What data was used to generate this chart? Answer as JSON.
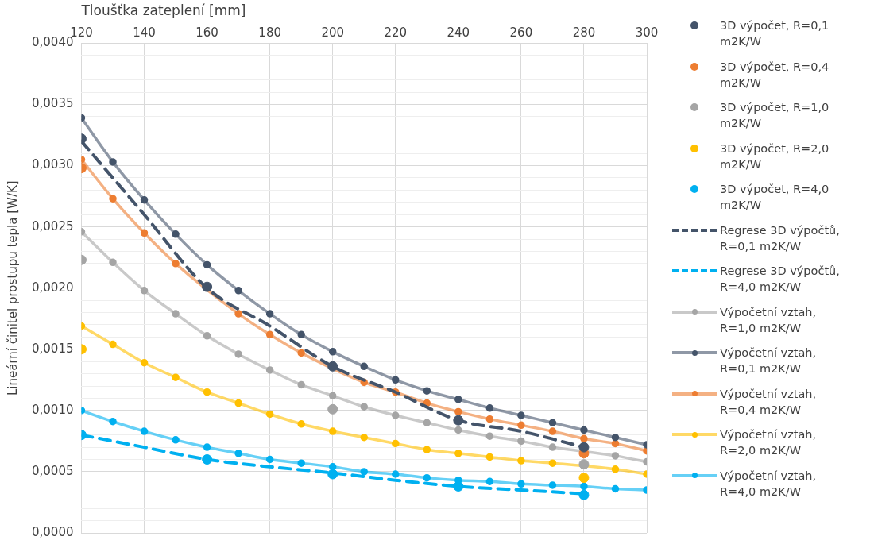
{
  "chart_data": {
    "type": "line",
    "xlabel": "Tloušťka zateplení [mm]",
    "ylabel": "Lineární činitel prostupu tepla [W/K]",
    "xlim": [
      120,
      300
    ],
    "xticks": [
      120,
      140,
      160,
      180,
      200,
      220,
      240,
      260,
      280,
      300
    ],
    "ylim": [
      0,
      0.004
    ],
    "yticks": [
      {
        "value": 0,
        "label": "0,0000"
      },
      {
        "value": 0.0001,
        "label": null
      },
      {
        "value": 0.0002,
        "label": null
      },
      {
        "value": 0.0003,
        "label": null
      },
      {
        "value": 0.0004,
        "label": null
      },
      {
        "value": 0.0005,
        "label": "0,0005"
      },
      {
        "value": 0.0006,
        "label": null
      },
      {
        "value": 0.0007,
        "label": null
      },
      {
        "value": 0.0008,
        "label": null
      },
      {
        "value": 0.0009,
        "label": null
      },
      {
        "value": 0.001,
        "label": "0,0010"
      },
      {
        "value": 0.0011,
        "label": null
      },
      {
        "value": 0.0012,
        "label": null
      },
      {
        "value": 0.0013,
        "label": null
      },
      {
        "value": 0.0014,
        "label": null
      },
      {
        "value": 0.0015,
        "label": "0,0015"
      },
      {
        "value": 0.0016,
        "label": null
      },
      {
        "value": 0.0017,
        "label": null
      },
      {
        "value": 0.0018,
        "label": null
      },
      {
        "value": 0.0019,
        "label": null
      },
      {
        "value": 0.002,
        "label": "0,0020"
      },
      {
        "value": 0.0021,
        "label": null
      },
      {
        "value": 0.0022,
        "label": null
      },
      {
        "value": 0.0023,
        "label": null
      },
      {
        "value": 0.0024,
        "label": null
      },
      {
        "value": 0.0025,
        "label": "0,0025"
      },
      {
        "value": 0.0026,
        "label": null
      },
      {
        "value": 0.0027,
        "label": null
      },
      {
        "value": 0.0028,
        "label": null
      },
      {
        "value": 0.0029,
        "label": null
      },
      {
        "value": 0.003,
        "label": "0,0030"
      },
      {
        "value": 0.0031,
        "label": null
      },
      {
        "value": 0.0032,
        "label": null
      },
      {
        "value": 0.0033,
        "label": null
      },
      {
        "value": 0.0034,
        "label": null
      },
      {
        "value": 0.0035,
        "label": "0,0035"
      },
      {
        "value": 0.0036,
        "label": null
      },
      {
        "value": 0.0037,
        "label": null
      },
      {
        "value": 0.0038,
        "label": null
      },
      {
        "value": 0.0039,
        "label": null
      },
      {
        "value": 0.004,
        "label": "0,0040"
      }
    ],
    "grid": true,
    "legend": "right",
    "series": [
      {
        "name": "3D výpočet, R=0,1 m2K/W",
        "type": "scatter",
        "marker": "circle",
        "color": "#44546a",
        "x": [
          120,
          160,
          200,
          240,
          280
        ],
        "values": [
          0.00322,
          0.00201,
          0.00136,
          0.00092,
          0.0007
        ]
      },
      {
        "name": "3D výpočet, R=0,4 m2K/W",
        "type": "scatter",
        "marker": "circle",
        "color": "#ed7d31",
        "x": [
          120,
          280
        ],
        "values": [
          0.00298,
          0.00065
        ]
      },
      {
        "name": "3D výpočet, R=1,0 m2K/W",
        "type": "scatter",
        "marker": "circle",
        "color": "#a5a5a5",
        "x": [
          120,
          200,
          280
        ],
        "values": [
          0.00223,
          0.00101,
          0.00056
        ]
      },
      {
        "name": "3D výpočet, R=2,0 m2K/W",
        "type": "scatter",
        "marker": "circle",
        "color": "#ffc000",
        "x": [
          120,
          280
        ],
        "values": [
          0.0015,
          0.00045
        ]
      },
      {
        "name": "3D výpočet, R=4,0 m2K/W",
        "type": "scatter",
        "marker": "circle",
        "color": "#00b0f0",
        "x": [
          120,
          160,
          200,
          240,
          280
        ],
        "values": [
          0.0008,
          0.0006,
          0.00048,
          0.00038,
          0.00031
        ]
      },
      {
        "name": "Regrese 3D výpočtů, R=0,1 m2K/W",
        "type": "line",
        "marker": "none",
        "line_style": "dashed",
        "color": "#44546a",
        "x": [
          120,
          140,
          160,
          180,
          200,
          220,
          240,
          260,
          280
        ],
        "values": [
          0.0032,
          0.0026,
          0.002,
          0.00169,
          0.00136,
          0.00115,
          0.00092,
          0.00083,
          0.0007
        ]
      },
      {
        "name": "Regrese 3D výpočtů, R=4,0 m2K/W",
        "type": "line",
        "marker": "none",
        "line_style": "dashed",
        "color": "#00b0f0",
        "x": [
          120,
          140,
          160,
          180,
          200,
          220,
          240,
          260,
          280
        ],
        "values": [
          0.0008,
          0.0007,
          0.0006,
          0.00054,
          0.00049,
          0.00043,
          0.00038,
          0.00035,
          0.00032
        ]
      },
      {
        "name": "Výpočetní vztah, R=1,0 m2K/W",
        "type": "line",
        "marker": "circle",
        "line_style": "solid",
        "color": "#a5a5a5",
        "x": [
          120,
          130,
          140,
          150,
          160,
          170,
          180,
          190,
          200,
          210,
          220,
          230,
          240,
          250,
          260,
          270,
          280,
          290,
          300
        ],
        "values": [
          0.00246,
          0.00221,
          0.00198,
          0.00179,
          0.00161,
          0.00146,
          0.00133,
          0.00121,
          0.00112,
          0.00103,
          0.00096,
          0.0009,
          0.00084,
          0.00079,
          0.00075,
          0.0007,
          null,
          0.00063,
          0.00058
        ]
      },
      {
        "name": "Výpočetní vztah, R=0,1 m2K/W",
        "type": "line",
        "marker": "circle",
        "line_style": "solid",
        "color": "#44546a",
        "x": [
          120,
          130,
          140,
          150,
          160,
          170,
          180,
          190,
          200,
          210,
          220,
          230,
          240,
          250,
          260,
          270,
          280,
          290,
          300
        ],
        "values": [
          0.00339,
          0.00303,
          0.00272,
          0.00244,
          0.00219,
          0.00198,
          0.00179,
          0.00162,
          0.00148,
          0.00136,
          0.00125,
          0.00116,
          0.00109,
          0.00102,
          0.00096,
          0.0009,
          0.00084,
          0.00078,
          0.00072
        ]
      },
      {
        "name": "Výpočetní vztah, R=0,4 m2K/W",
        "type": "line",
        "marker": "circle",
        "line_style": "solid",
        "color": "#ed7d31",
        "x": [
          120,
          130,
          140,
          150,
          160,
          170,
          180,
          190,
          200,
          210,
          220,
          230,
          240,
          250,
          260,
          270,
          280,
          290,
          300
        ],
        "values": [
          0.00305,
          0.00273,
          0.00245,
          0.0022,
          null,
          0.00179,
          0.00162,
          0.00147,
          null,
          0.00123,
          0.00115,
          0.00106,
          0.00099,
          0.00093,
          0.00088,
          0.00083,
          0.00077,
          0.00073,
          0.00067
        ]
      },
      {
        "name": "Výpočetní vztah, R=2,0 m2K/W",
        "type": "line",
        "marker": "circle",
        "line_style": "solid",
        "color": "#ffc000",
        "x": [
          120,
          130,
          140,
          150,
          160,
          170,
          180,
          190,
          200,
          210,
          220,
          230,
          240,
          250,
          260,
          270,
          280,
          290,
          300
        ],
        "values": [
          0.00169,
          0.00154,
          0.00139,
          0.00127,
          0.00115,
          0.00106,
          0.00097,
          0.00089,
          0.00083,
          0.00078,
          0.00073,
          0.00068,
          0.00065,
          0.00062,
          0.00059,
          0.00057,
          null,
          0.00052,
          0.00048
        ]
      },
      {
        "name": "Výpočetní vztah, R=4,0 m2K/W",
        "type": "line",
        "marker": "circle",
        "line_style": "solid",
        "color": "#00b0f0",
        "x": [
          120,
          130,
          140,
          150,
          160,
          170,
          180,
          190,
          200,
          210,
          220,
          230,
          240,
          250,
          260,
          270,
          280,
          290,
          300
        ],
        "values": [
          0.001,
          0.00091,
          0.00083,
          0.00076,
          0.0007,
          0.00065,
          0.0006,
          0.00057,
          0.00054,
          0.0005,
          0.00048,
          0.00045,
          0.00043,
          0.00042,
          0.0004,
          0.00039,
          0.00038,
          0.00036,
          0.00035
        ]
      }
    ]
  }
}
